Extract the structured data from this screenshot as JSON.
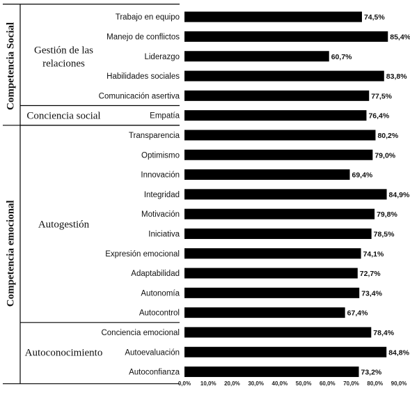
{
  "chart_data": {
    "type": "bar",
    "orientation": "horizontal",
    "categories": [
      "Trabajo en equipo",
      "Manejo de conflictos",
      "Liderazgo",
      "Habilidades sociales",
      "Comunicación asertiva",
      "Empatía",
      "Transparencia",
      "Optimismo",
      "Innovación",
      "Integridad",
      "Motivación",
      "Iniciativa",
      "Expresión emocional",
      "Adaptabilidad",
      "Autonomía",
      "Autocontrol",
      "Conciencia emocional",
      "Autoevaluación",
      "Autoconfianza"
    ],
    "values": [
      74.5,
      85.4,
      60.7,
      83.8,
      77.5,
      76.4,
      80.2,
      79.0,
      69.4,
      84.9,
      79.8,
      78.5,
      74.1,
      72.7,
      73.4,
      67.4,
      78.4,
      84.8,
      73.2
    ],
    "value_labels": [
      "74,5%",
      "85,4%",
      "60,7%",
      "83,8%",
      "77,5%",
      "76,4%",
      "80,2%",
      "79,0%",
      "69,4%",
      "84,9%",
      "79,8%",
      "78,5%",
      "74,1%",
      "72,7%",
      "73,4%",
      "67,4%",
      "78,4%",
      "84,8%",
      "73,2%"
    ],
    "xlim": [
      0,
      90
    ],
    "xticks": [
      "0,0%",
      "10,0%",
      "20,0%",
      "30,0%",
      "40,0%",
      "50,0%",
      "60,0%",
      "70,0%",
      "80,0%",
      "90,0%"
    ],
    "bar_color": "#000000",
    "grid": false,
    "groups": [
      {
        "label": "Gestión de las relaciones",
        "lines": [
          "Gestión de las",
          "relaciones"
        ],
        "first": 0,
        "last": 4
      },
      {
        "label": "Conciencia social",
        "lines": [
          "Conciencia social"
        ],
        "first": 5,
        "last": 5
      },
      {
        "label": "Autogestión",
        "lines": [
          "Autogestión"
        ],
        "first": 6,
        "last": 15
      },
      {
        "label": "Autoconocimiento",
        "lines": [
          "Autoconocimiento"
        ],
        "first": 16,
        "last": 18
      }
    ],
    "competencies": [
      {
        "label": "Competencia Social",
        "first": 0,
        "last": 5
      },
      {
        "label": "Competencia emocional",
        "first": 6,
        "last": 18
      }
    ]
  }
}
